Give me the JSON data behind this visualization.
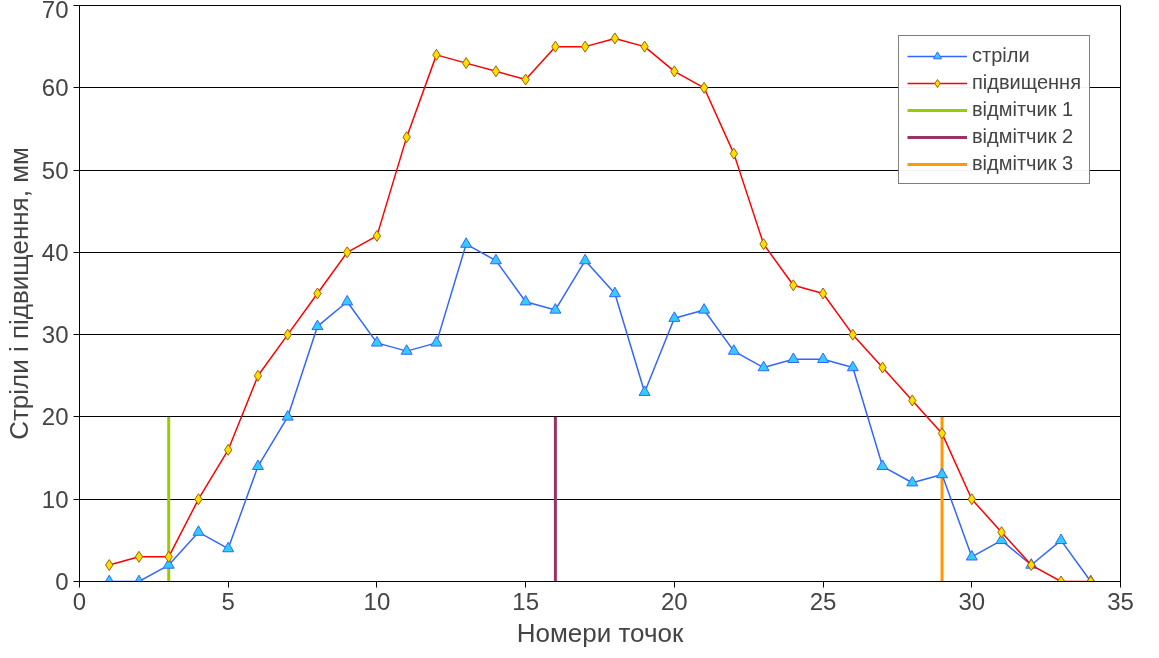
{
  "chart_data": {
    "type": "line",
    "xlabel": "Номери точок",
    "ylabel": "Стріли і підвищення, мм",
    "xlim": [
      0,
      35
    ],
    "xticks": [
      0,
      5,
      10,
      15,
      20,
      25,
      30,
      35
    ],
    "ylim": [
      0,
      70
    ],
    "yticks": [
      0,
      10,
      20,
      30,
      40,
      50,
      60,
      70
    ],
    "grid": "y",
    "legend": "top right",
    "x": [
      1,
      2,
      3,
      4,
      5,
      6,
      7,
      8,
      9,
      10,
      11,
      12,
      13,
      14,
      15,
      16,
      17,
      18,
      19,
      20,
      21,
      22,
      23,
      24,
      25,
      26,
      27,
      28,
      29,
      30,
      31,
      32,
      33,
      34
    ],
    "series": [
      {
        "name": "стріли",
        "color": "#3366ff",
        "marker": "triangle",
        "values": [
          0,
          0,
          2,
          6,
          4,
          14,
          20,
          31,
          34,
          29,
          28,
          29,
          41,
          39,
          34,
          33,
          39,
          35,
          23,
          32,
          33,
          28,
          26,
          27,
          27,
          26,
          14,
          12,
          13,
          3,
          5,
          2,
          5,
          0
        ]
      },
      {
        "name": "підвищення",
        "color": "#ff0000",
        "marker": "diamond",
        "values": [
          2,
          3,
          3,
          10,
          16,
          25,
          30,
          35,
          40,
          42,
          54,
          64,
          63,
          62,
          61,
          65,
          65,
          66,
          65,
          62,
          60,
          52,
          41,
          36,
          35,
          30,
          26,
          22,
          18,
          10,
          6,
          2,
          0,
          0
        ]
      },
      {
        "name": "відмітчик 1",
        "color": "#99cc00",
        "marker": "none",
        "x": [
          3,
          3
        ],
        "values": [
          0,
          20
        ]
      },
      {
        "name": "відмітчик 2",
        "color": "#993366",
        "marker": "none",
        "x": [
          16,
          16
        ],
        "values": [
          0,
          20
        ]
      },
      {
        "name": "відмітчик 3",
        "color": "#ff9900",
        "marker": "none",
        "x": [
          29,
          29
        ],
        "values": [
          0,
          20
        ]
      }
    ]
  }
}
